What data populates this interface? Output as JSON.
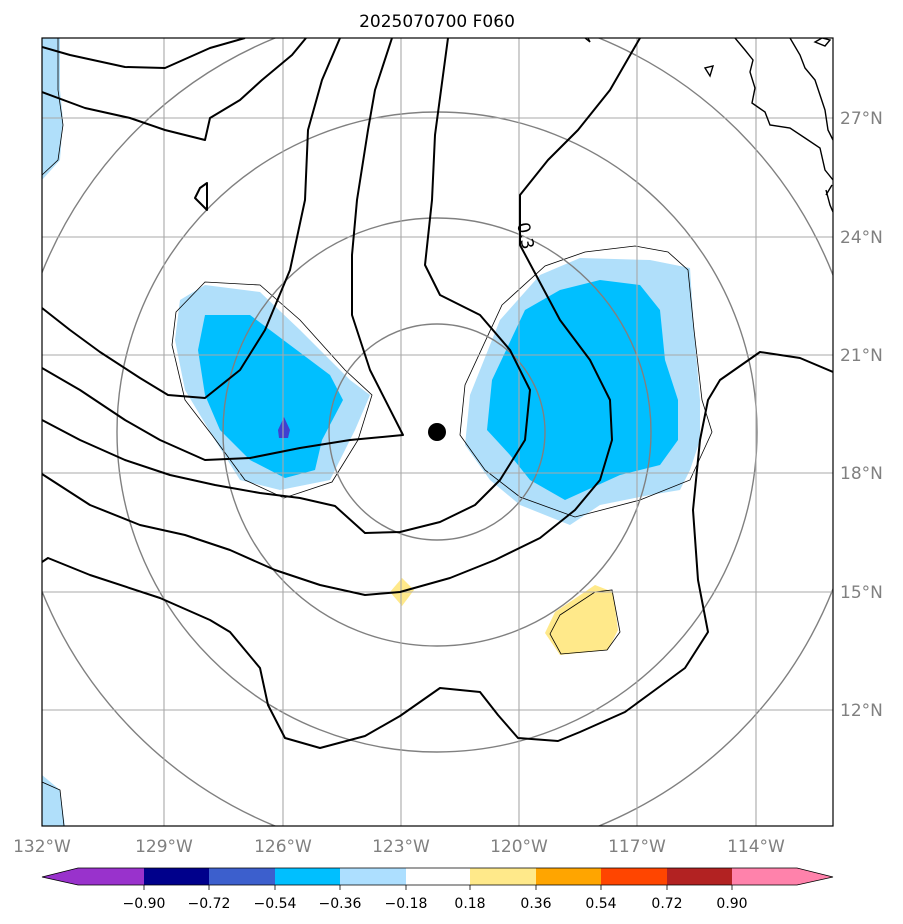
{
  "title": "2025070700 F060",
  "longitude_labels": [
    "132°W",
    "129°W",
    "126°W",
    "123°W",
    "120°W",
    "117°W",
    "114°W"
  ],
  "latitude_labels": [
    "27°N",
    "24°N",
    "21°N",
    "18°N",
    "15°N",
    "12°N"
  ],
  "contour_label": "0.3",
  "colorbar": {
    "tick_labels": [
      "−0.90",
      "−0.72",
      "−0.54",
      "−0.36",
      "−0.18",
      "0.18",
      "0.36",
      "0.54",
      "0.72",
      "0.90"
    ],
    "colors": [
      "#9932cc",
      "#00008b",
      "#3c5fcd",
      "#00bfff",
      "#addfff",
      "#ffffff",
      "#ffe98a",
      "#ffa500",
      "#ff4500",
      "#b22222",
      "#ff82ab"
    ]
  },
  "fill_colors": {
    "light_blue": "#b0dffa",
    "blue": "#00bfff",
    "dark_blue": "#4040d0",
    "yellow": "#ffe98a"
  },
  "storm_center": {
    "lon": -122.1,
    "lat": 19.0
  }
}
